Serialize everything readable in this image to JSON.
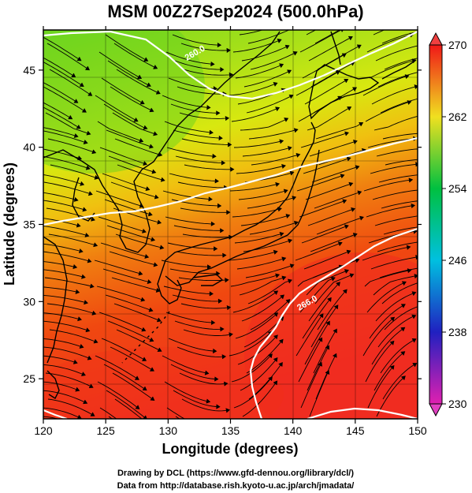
{
  "title": "MSM 00Z27Sep2024 (500.0hPa)",
  "x_axis": {
    "label": "Longitude (degrees)",
    "range": [
      120,
      150
    ],
    "ticks": [
      "120",
      "125",
      "130",
      "135",
      "140",
      "145",
      "150"
    ],
    "tick_values": [
      120,
      125,
      130,
      135,
      140,
      145,
      150
    ]
  },
  "y_axis": {
    "label": "Latitude  (degrees)",
    "range": [
      22.4,
      47.6
    ],
    "ticks": [
      "25",
      "30",
      "35",
      "40",
      "45"
    ],
    "tick_values": [
      25,
      30,
      35,
      40,
      45
    ]
  },
  "colorbar": {
    "ticks": [
      "230",
      "238",
      "246",
      "254",
      "262",
      "270"
    ],
    "tick_values": [
      230,
      238,
      246,
      254,
      262,
      270
    ],
    "range": [
      230,
      270
    ],
    "colors": [
      "#e020b0",
      "#2020c0",
      "#00c0e0",
      "#00c040",
      "#f0e020",
      "#f01818"
    ]
  },
  "contour_labels": [
    {
      "text": "260.0",
      "lon": 131.5,
      "lat": 45.6
    },
    {
      "text": "266.0",
      "lon": 140.5,
      "lat": 29.4
    }
  ],
  "credits": [
    "Drawing by DCL (https://www.gfd-dennou.org/library/dcl/)",
    "Data from http://database.rish.kyoto-u.ac.jp/arch/jmadata/"
  ]
}
